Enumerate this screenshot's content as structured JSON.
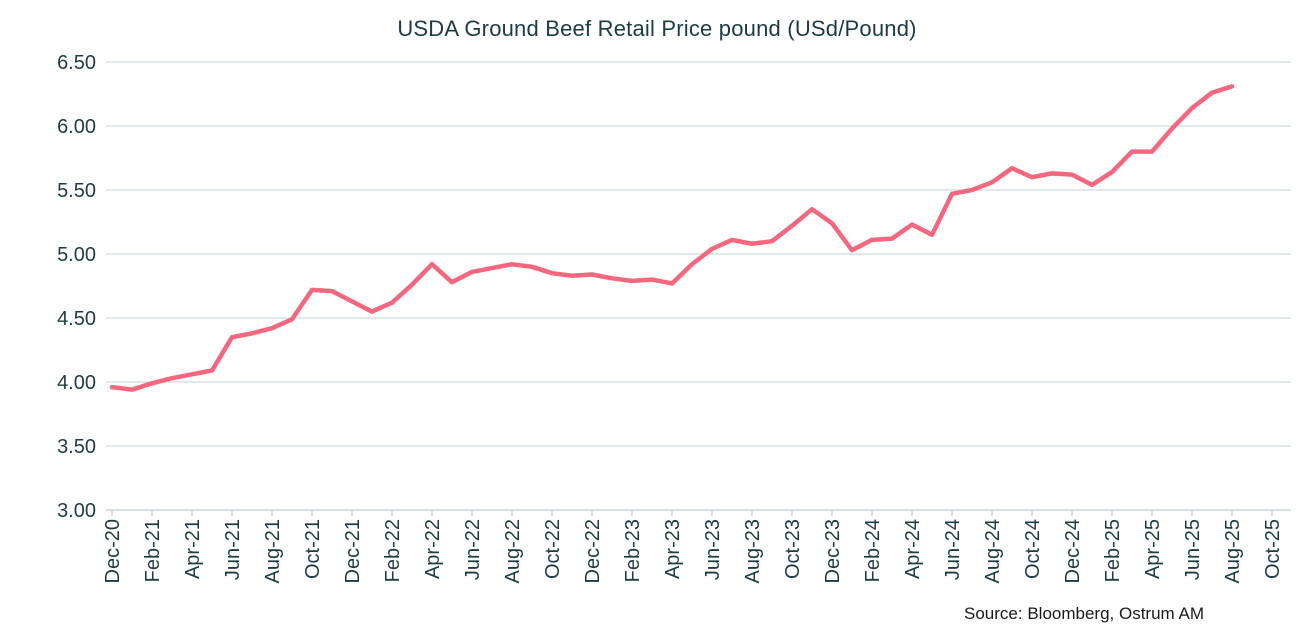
{
  "figure": {
    "background": "#ffffff"
  },
  "chart_data": {
    "type": "line",
    "title": "USDA Ground Beef Retail Price pound (USd/Pound)",
    "source": "Source: Bloomberg,  Ostrum AM",
    "frequency": "monthly",
    "x_start": "Dec-20",
    "x_end": "Aug-25",
    "grid": "horizontal",
    "legend": "none",
    "ylim": [
      3.0,
      6.5
    ],
    "y_tick_labels": [
      "6.50",
      "6.00",
      "5.50",
      "5.00",
      "4.50",
      "4.00",
      "3.50",
      "3.00"
    ],
    "x_tick_labels": [
      "Dec-20",
      "Feb-21",
      "Apr-21",
      "Jun-21",
      "Aug-21",
      "Oct-21",
      "Dec-21",
      "Feb-22",
      "Apr-22",
      "Jun-22",
      "Aug-22",
      "Oct-22",
      "Dec-22",
      "Feb-23",
      "Apr-23",
      "Jun-23",
      "Aug-23",
      "Oct-23",
      "Dec-23",
      "Feb-24",
      "Apr-24",
      "Jun-24",
      "Aug-24",
      "Oct-24",
      "Dec-24",
      "Feb-25",
      "Apr-25",
      "Jun-25",
      "Aug-25",
      "Oct-25"
    ],
    "series": [
      {
        "name": "USDA Ground Beef Retail Price (USd/Pound)",
        "color": "#F5677E",
        "months": [
          "Dec-20",
          "Jan-21",
          "Feb-21",
          "Mar-21",
          "Apr-21",
          "May-21",
          "Jun-21",
          "Jul-21",
          "Aug-21",
          "Sep-21",
          "Oct-21",
          "Nov-21",
          "Dec-21",
          "Jan-22",
          "Feb-22",
          "Mar-22",
          "Apr-22",
          "May-22",
          "Jun-22",
          "Jul-22",
          "Aug-22",
          "Sep-22",
          "Oct-22",
          "Nov-22",
          "Dec-22",
          "Jan-23",
          "Feb-23",
          "Mar-23",
          "Apr-23",
          "May-23",
          "Jun-23",
          "Jul-23",
          "Aug-23",
          "Sep-23",
          "Oct-23",
          "Nov-23",
          "Dec-23",
          "Jan-24",
          "Feb-24",
          "Mar-24",
          "Apr-24",
          "May-24",
          "Jun-24",
          "Jul-24",
          "Aug-24",
          "Sep-24",
          "Oct-24",
          "Nov-24",
          "Dec-24",
          "Jan-25",
          "Feb-25",
          "Mar-25",
          "Apr-25",
          "May-25",
          "Jun-25",
          "Jul-25",
          "Aug-25"
        ],
        "values": [
          3.96,
          3.94,
          3.99,
          4.03,
          4.06,
          4.09,
          4.35,
          4.38,
          4.42,
          4.49,
          4.72,
          4.71,
          4.63,
          4.55,
          4.62,
          4.76,
          4.92,
          4.78,
          4.86,
          4.89,
          4.92,
          4.9,
          4.85,
          4.83,
          4.84,
          4.81,
          4.79,
          4.8,
          4.77,
          4.92,
          5.04,
          5.11,
          5.08,
          5.1,
          5.22,
          5.35,
          5.24,
          5.03,
          5.11,
          5.12,
          5.23,
          5.15,
          5.47,
          5.5,
          5.56,
          5.67,
          5.6,
          5.63,
          5.62,
          5.54,
          5.64,
          5.8,
          5.8,
          5.98,
          6.14,
          6.26,
          6.31
        ]
      }
    ],
    "colors": {
      "title_text": "#1B3C45",
      "axis_text": "#1B3C45",
      "gridline": "#D7E1E6",
      "axis_line": "#C9D7DD",
      "line": "#F5677E",
      "source_text": "#1A1A1A"
    }
  }
}
